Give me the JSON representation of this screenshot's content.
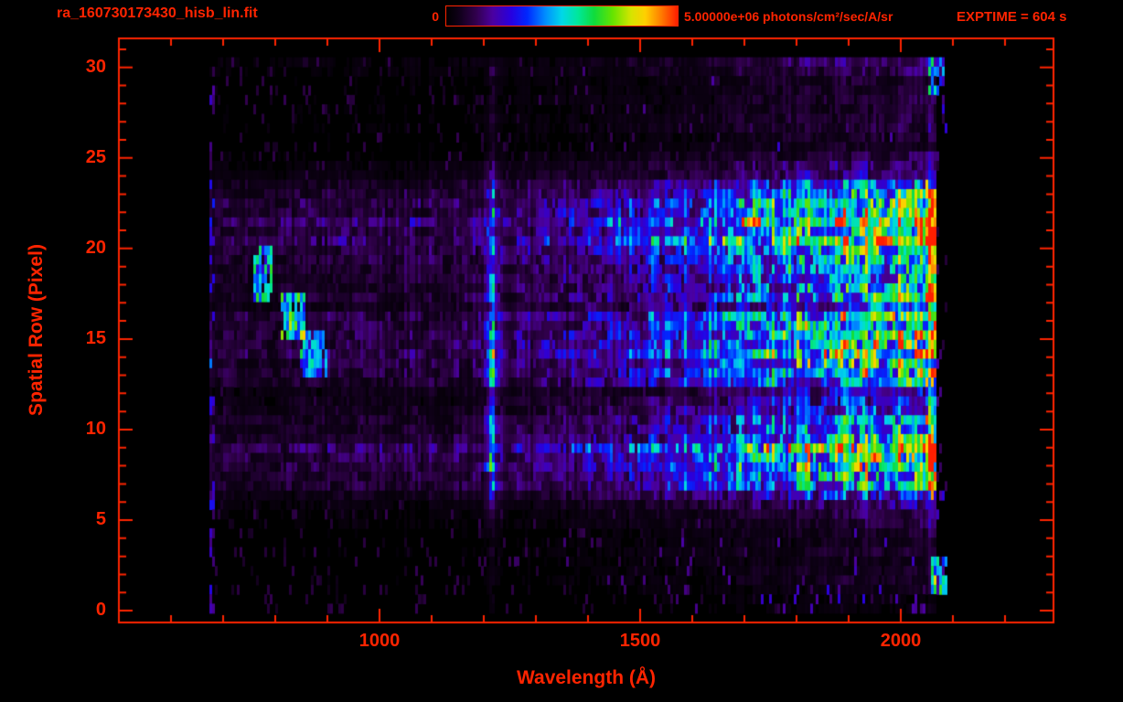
{
  "colors": {
    "accent": "#ff2400",
    "background": "#000000"
  },
  "header": {
    "title": "ra_160730173430_hisb_lin.fit",
    "colorbar_min_label": "0",
    "colorbar_max_label": "5.00000e+06 photons/cm²/sec/A/sr",
    "exptime_label": "EXPTIME = 604 s"
  },
  "chart_data": {
    "type": "heatmap",
    "title": "ra_160730173430_hisb_lin.fit",
    "xlabel": "Wavelength (Å)",
    "ylabel": "Spatial Row (Pixel)",
    "xlim": [
      500,
      2293
    ],
    "ylim": [
      -0.65,
      31.6
    ],
    "x_major_ticks": [
      1000,
      1500,
      2000
    ],
    "x_minor_step": 100,
    "y_major_ticks": [
      0,
      5,
      10,
      15,
      20,
      25,
      30
    ],
    "y_minor_step": 1,
    "colorbar": {
      "min": 0,
      "max": 5000000,
      "min_label": "0",
      "max_label": "5.00000e+06",
      "units": "photons/cm²/sec/A/sr"
    },
    "exptime_seconds": 604,
    "wavelength_data_range": [
      675,
      2066
    ],
    "emission_line": {
      "center": 1216,
      "sigma": 6.5,
      "amplitude": 0.48
    },
    "continuum_points": [
      [
        675,
        0.1
      ],
      [
        760,
        0.11
      ],
      [
        900,
        0.12
      ],
      [
        1000,
        0.125
      ],
      [
        1100,
        0.135
      ],
      [
        1180,
        0.15
      ],
      [
        1216,
        0.16
      ],
      [
        1300,
        0.19
      ],
      [
        1400,
        0.24
      ],
      [
        1500,
        0.31
      ],
      [
        1600,
        0.4
      ],
      [
        1700,
        0.5
      ],
      [
        1800,
        0.62
      ],
      [
        1900,
        0.7
      ],
      [
        1980,
        0.76
      ],
      [
        2030,
        0.79
      ],
      [
        2066,
        0.82
      ]
    ],
    "row_profile": [
      0.03,
      0.06,
      0.1,
      0.08,
      0.1,
      0.16,
      0.22,
      0.6,
      0.92,
      0.98,
      0.8,
      0.5,
      0.44,
      0.62,
      0.78,
      0.82,
      0.74,
      0.58,
      0.62,
      0.88,
      1.0,
      0.97,
      0.93,
      0.78,
      0.35,
      0.14,
      0.11,
      0.12,
      0.13,
      0.1,
      0.16
    ],
    "features": [
      {
        "x": [
          757,
          793
        ],
        "rows": [
          17.0,
          19.9
        ],
        "amplitude": 0.5
      },
      {
        "x": [
          812,
          856
        ],
        "rows": [
          14.8,
          17.3
        ],
        "amplitude": 0.55
      },
      {
        "x": [
          848,
          902
        ],
        "rows": [
          13.0,
          15.3
        ],
        "amplitude": 0.42
      },
      {
        "x": [
          2060,
          2092
        ],
        "rows": [
          0.7,
          2.8
        ],
        "amplitude": 0.5
      },
      {
        "x": [
          2052,
          2084
        ],
        "rows": [
          28.3,
          30.6
        ],
        "amplitude": 0.4
      }
    ],
    "colormap_stops": [
      [
        0,
        "#000000"
      ],
      [
        0.05,
        "#0e0016"
      ],
      [
        0.13,
        "#32004e"
      ],
      [
        0.2,
        "#4b00a0"
      ],
      [
        0.28,
        "#2800e0"
      ],
      [
        0.35,
        "#0028ff"
      ],
      [
        0.43,
        "#0090ff"
      ],
      [
        0.5,
        "#00d8e8"
      ],
      [
        0.57,
        "#00e89a"
      ],
      [
        0.64,
        "#10dc3c"
      ],
      [
        0.72,
        "#66e400"
      ],
      [
        0.8,
        "#d8e400"
      ],
      [
        0.86,
        "#ffd000"
      ],
      [
        0.92,
        "#ff8800"
      ],
      [
        1.0,
        "#ff1e00"
      ]
    ],
    "seed": 7
  }
}
